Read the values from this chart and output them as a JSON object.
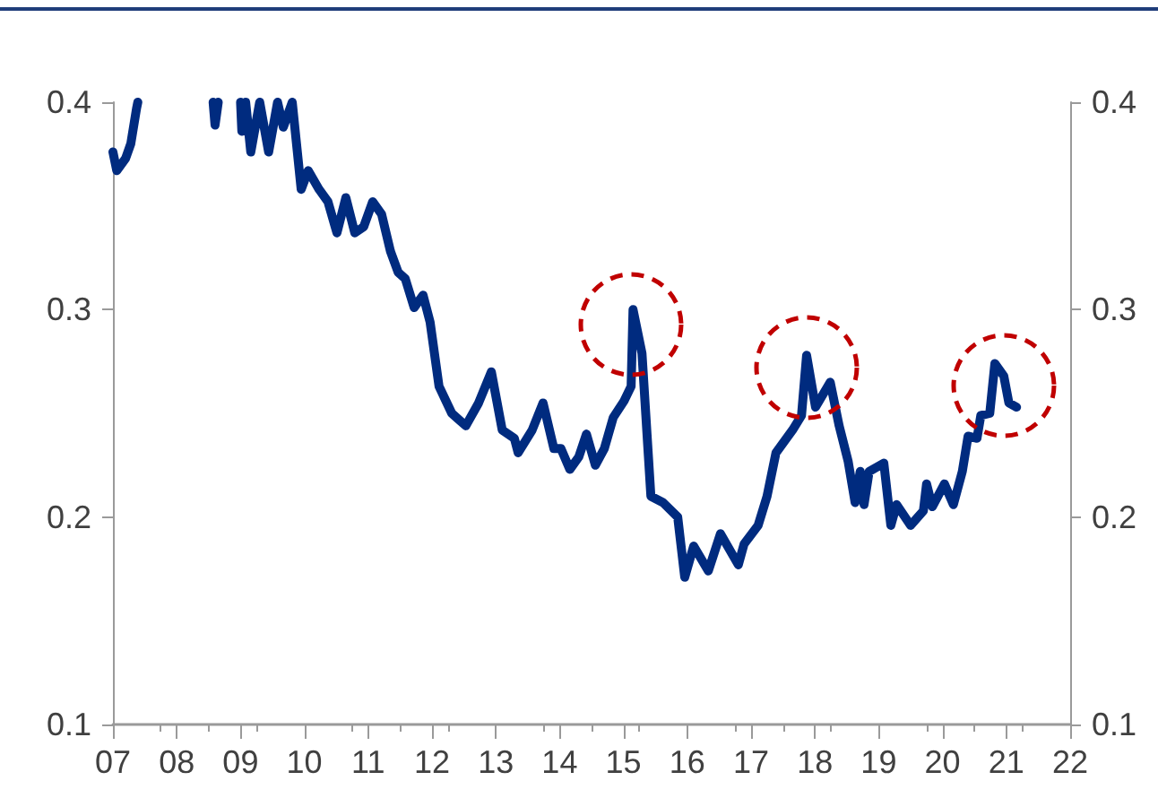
{
  "chart_data": {
    "type": "line",
    "x": [
      2007.0,
      2007.06,
      2007.2,
      2007.28,
      2007.37,
      2007.39,
      2008.0,
      2008.57,
      2008.6,
      2008.65,
      2008.8,
      2009.0,
      2009.02,
      2009.08,
      2009.16,
      2009.3,
      2009.44,
      2009.58,
      2009.67,
      2009.81,
      2009.95,
      2010.06,
      2010.23,
      2010.37,
      2010.51,
      2010.65,
      2010.79,
      2010.93,
      2011.07,
      2011.21,
      2011.35,
      2011.47,
      2011.58,
      2011.72,
      2011.86,
      2011.97,
      2012.11,
      2012.31,
      2012.53,
      2012.73,
      2012.93,
      2013.1,
      2013.29,
      2013.35,
      2013.57,
      2013.74,
      2013.91,
      2014.02,
      2014.16,
      2014.3,
      2014.42,
      2014.56,
      2014.7,
      2014.84,
      2015.01,
      2015.12,
      2015.15,
      2015.29,
      2015.43,
      2015.62,
      2015.85,
      2015.96,
      2016.1,
      2016.33,
      2016.52,
      2016.8,
      2016.89,
      2017.11,
      2017.25,
      2017.39,
      2017.65,
      2017.79,
      2017.87,
      2018.01,
      2018.24,
      2018.38,
      2018.52,
      2018.63,
      2018.71,
      2018.77,
      2018.85,
      2019.08,
      2019.19,
      2019.28,
      2019.5,
      2019.7,
      2019.75,
      2019.84,
      2020.03,
      2020.17,
      2020.31,
      2020.4,
      2020.54,
      2020.6,
      2020.74,
      2020.82,
      2020.96,
      2021.04,
      2021.16
    ],
    "series": [
      {
        "color": "#002b7f",
        "values": [
          0.376,
          0.367,
          0.373,
          0.38,
          0.397,
          0.4,
          null,
          0.4,
          0.389,
          0.4,
          null,
          0.4,
          0.386,
          0.4,
          0.376,
          0.4,
          0.376,
          0.4,
          0.388,
          0.4,
          0.358,
          0.367,
          0.358,
          0.352,
          0.337,
          0.354,
          0.337,
          0.34,
          0.352,
          0.346,
          0.328,
          0.318,
          0.315,
          0.301,
          0.307,
          0.294,
          0.263,
          0.25,
          0.244,
          0.255,
          0.27,
          0.242,
          0.238,
          0.231,
          0.242,
          0.255,
          0.233,
          0.233,
          0.223,
          0.229,
          0.24,
          0.225,
          0.233,
          0.248,
          0.256,
          0.263,
          0.3,
          0.279,
          0.21,
          0.207,
          0.2,
          0.171,
          0.186,
          0.174,
          0.192,
          0.177,
          0.187,
          0.196,
          0.21,
          0.231,
          0.242,
          0.249,
          0.278,
          0.253,
          0.265,
          0.244,
          0.227,
          0.207,
          0.222,
          0.206,
          0.222,
          0.226,
          0.196,
          0.206,
          0.196,
          0.203,
          0.216,
          0.205,
          0.216,
          0.206,
          0.222,
          0.239,
          0.238,
          0.249,
          0.25,
          0.274,
          0.268,
          0.255,
          0.253
        ]
      }
    ],
    "xlim": [
      2007,
      2022
    ],
    "xticks": [
      {
        "value": 2007,
        "label": "07"
      },
      {
        "value": 2008,
        "label": "08"
      },
      {
        "value": 2009,
        "label": "09"
      },
      {
        "value": 2010,
        "label": "10"
      },
      {
        "value": 2011,
        "label": "11"
      },
      {
        "value": 2012,
        "label": "12"
      },
      {
        "value": 2013,
        "label": "13"
      },
      {
        "value": 2014,
        "label": "14"
      },
      {
        "value": 2015,
        "label": "15"
      },
      {
        "value": 2016,
        "label": "16"
      },
      {
        "value": 2017,
        "label": "17"
      },
      {
        "value": 2018,
        "label": "18"
      },
      {
        "value": 2019,
        "label": "19"
      },
      {
        "value": 2020,
        "label": "20"
      },
      {
        "value": 2021,
        "label": "21"
      },
      {
        "value": 2022,
        "label": "22"
      }
    ],
    "ylim": [
      0.1,
      0.4
    ],
    "yticks": [
      0.1,
      0.2,
      0.3,
      0.4
    ],
    "y2lim": [
      0.1,
      0.4
    ],
    "y2ticks": [
      0.1,
      0.2,
      0.3,
      0.4
    ],
    "marker": "none",
    "line_style": "solid"
  }
}
